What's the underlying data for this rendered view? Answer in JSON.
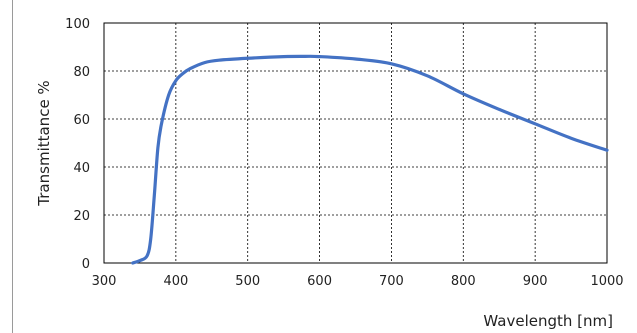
{
  "chart_data": {
    "type": "line",
    "title": "",
    "xlabel": "Wavelength [nm]",
    "ylabel": "Transmittance %",
    "xlim": [
      300,
      1000
    ],
    "ylim": [
      0,
      100
    ],
    "xticks": [
      300,
      400,
      500,
      600,
      700,
      800,
      900,
      1000
    ],
    "yticks": [
      0,
      20,
      40,
      60,
      80,
      100
    ],
    "x_tick_labels": [
      "300",
      "400",
      "500",
      "600",
      "700",
      "800",
      "900",
      "1000"
    ],
    "y_tick_labels": [
      "0",
      "20",
      "40",
      "60",
      "80",
      "100"
    ],
    "grid": true,
    "grid_style": "dashed",
    "legend": "none",
    "line_color": "#4472C4",
    "series": [
      {
        "x": [
          340,
          350,
          360,
          365,
          370,
          375,
          380,
          390,
          400,
          410,
          420,
          440,
          460,
          500,
          550,
          580,
          600,
          650,
          700,
          750,
          800,
          850,
          900,
          950,
          1000
        ],
        "y": [
          0,
          1,
          3,
          10,
          28,
          48,
          58,
          70,
          76,
          79,
          81,
          83.5,
          84.5,
          85.3,
          86,
          86.1,
          86,
          85,
          83,
          78,
          70.5,
          64,
          58,
          52,
          47
        ]
      }
    ]
  }
}
